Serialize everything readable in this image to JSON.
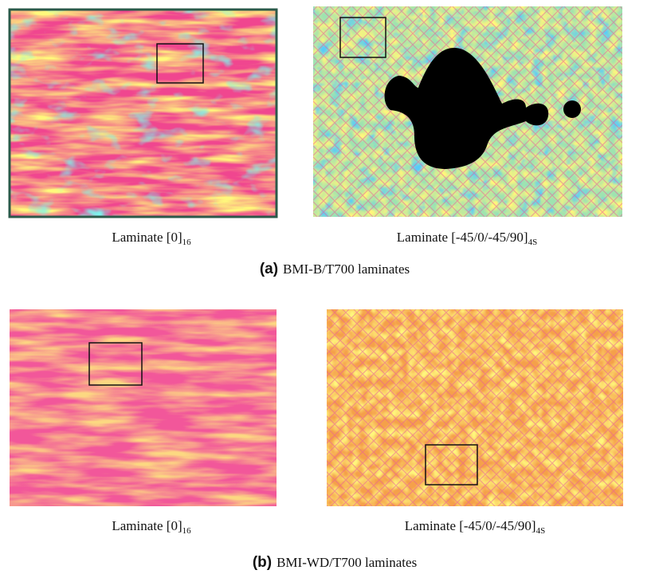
{
  "panels": [
    {
      "label": "(a)",
      "caption": "BMI-B/T700 laminates",
      "images": [
        {
          "label": "Laminate [0]",
          "subscript": "16"
        },
        {
          "label": "Laminate [-45/0/-45/90]",
          "subscript": "4S"
        }
      ]
    },
    {
      "label": "(b)",
      "caption": "BMI-WD/T700 laminates",
      "images": [
        {
          "label": "Laminate [0]",
          "subscript": "16"
        },
        {
          "label": "Laminate [-45/0/-45/90]",
          "subscript": "4S"
        }
      ]
    }
  ]
}
